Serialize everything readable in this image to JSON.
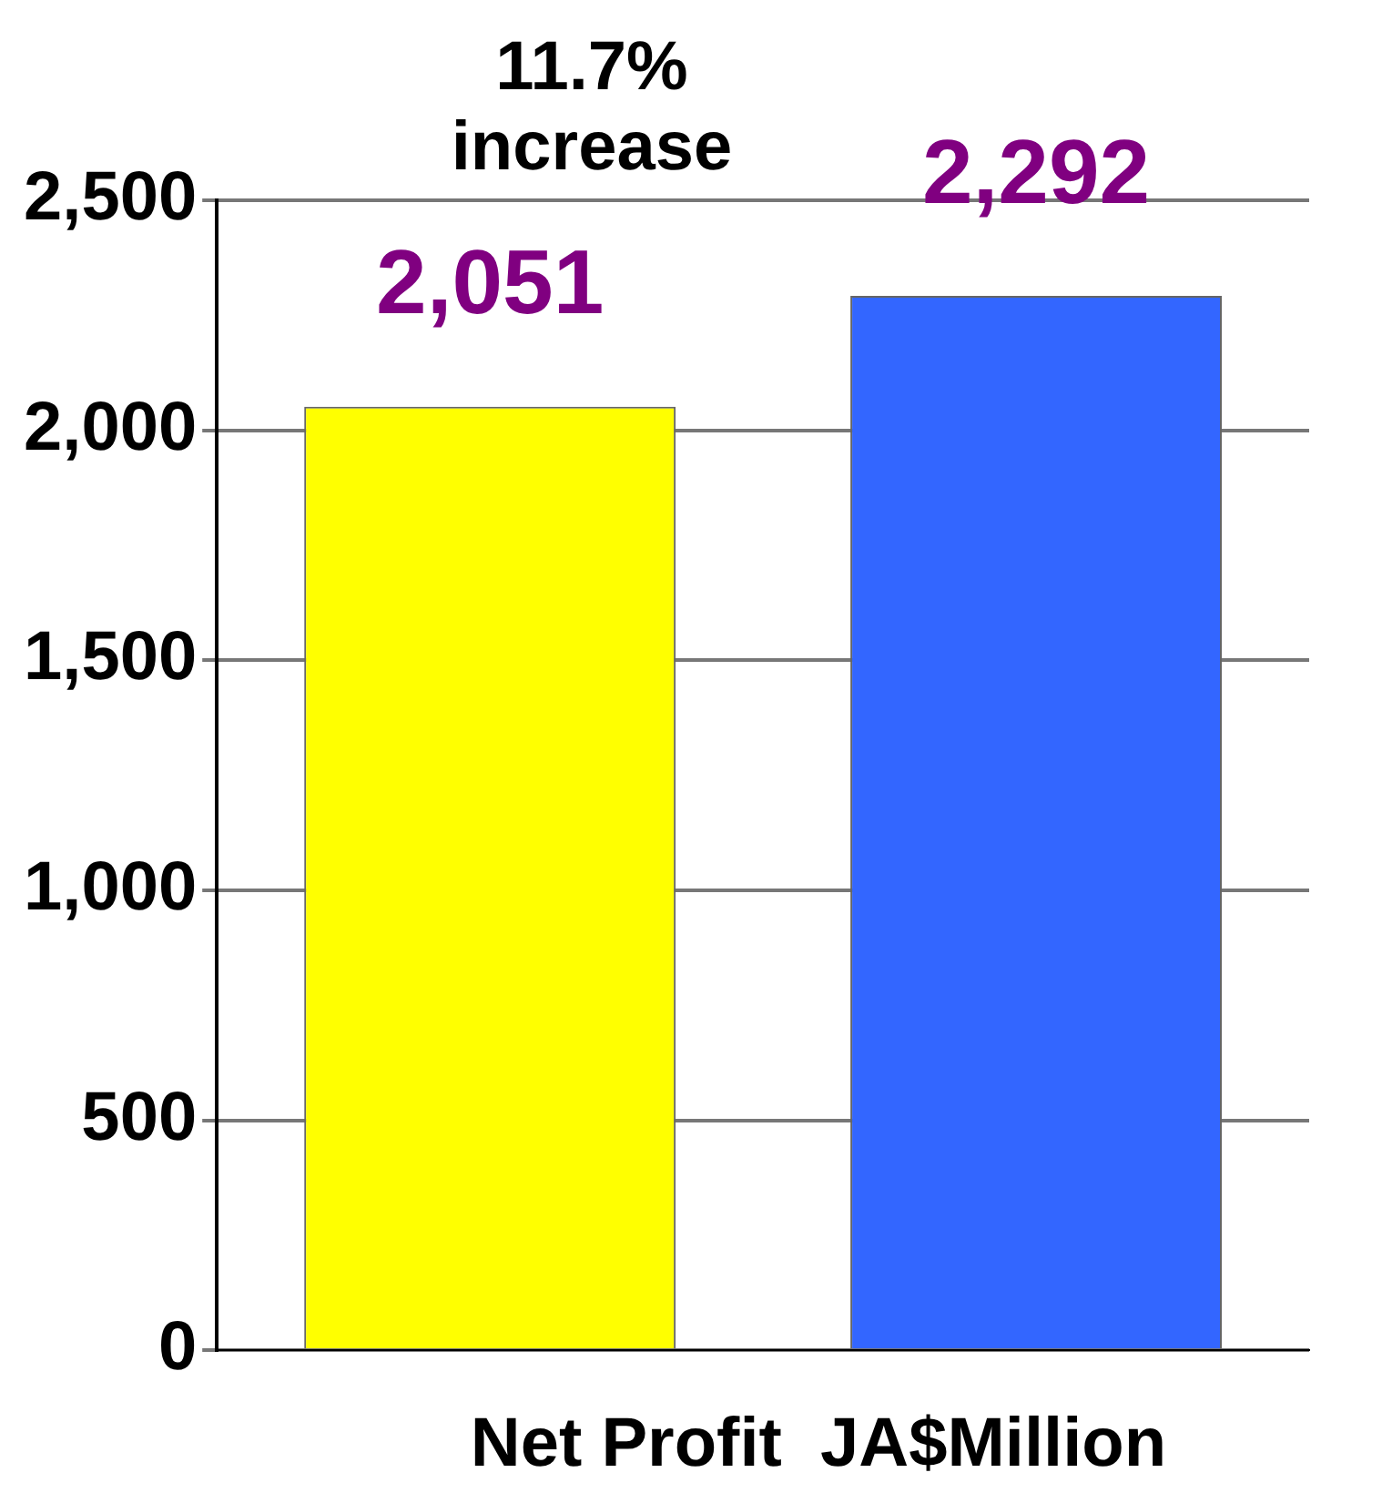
{
  "chart_data": {
    "type": "bar",
    "categories": [
      null,
      null
    ],
    "values": [
      2051,
      2292
    ],
    "colors": [
      "#ffff00",
      "#3366ff"
    ],
    "value_labels": [
      "2,051",
      "2,292"
    ],
    "ylim": [
      0,
      2500
    ],
    "yticks": [
      {
        "value": 0,
        "label": "0"
      },
      {
        "value": 500,
        "label": "500"
      },
      {
        "value": 1000,
        "label": "1,000"
      },
      {
        "value": 1500,
        "label": "1,500"
      },
      {
        "value": 2000,
        "label": "2,000"
      },
      {
        "value": 2500,
        "label": "2,500"
      }
    ],
    "grid": "y",
    "xlabel": "Net Profit  JA$Million",
    "annotations": [
      "11.7% increase"
    ]
  }
}
